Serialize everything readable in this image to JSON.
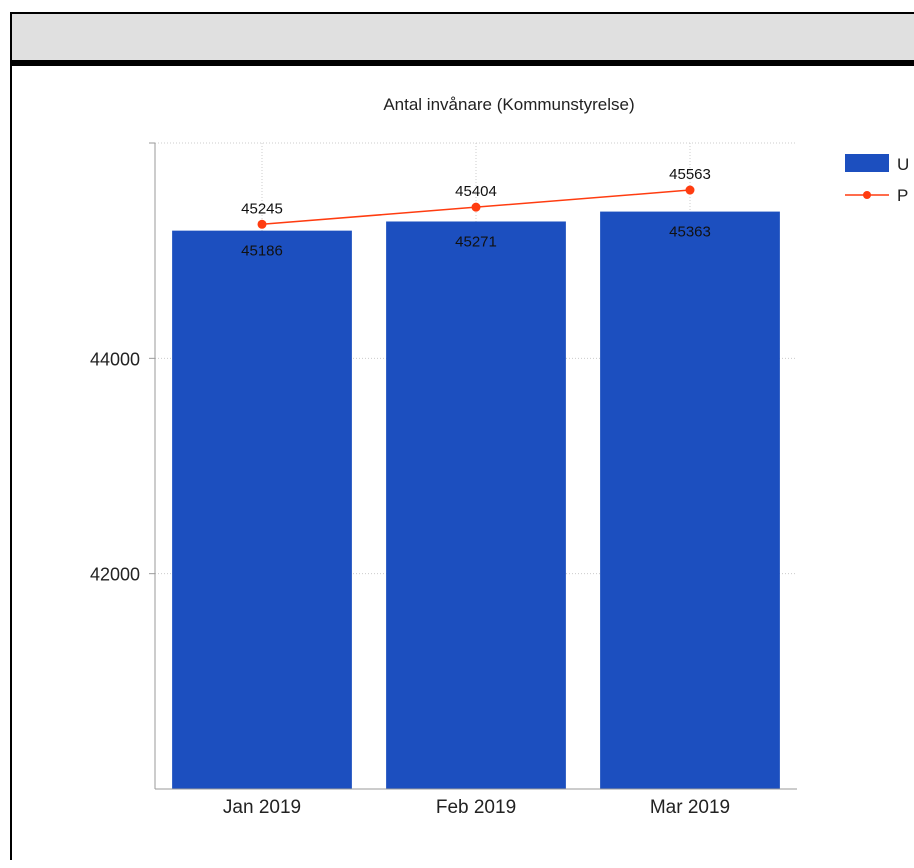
{
  "panel": {
    "header_text": ""
  },
  "chart_data": {
    "type": "bar",
    "title": "Antal invånare (Kommunstyrelse)",
    "categories": [
      "Jan 2019",
      "Feb 2019",
      "Mar 2019"
    ],
    "series": [
      {
        "kind": "bar",
        "legend_label": "U",
        "color": "#1c4fbf",
        "values": [
          45186,
          45271,
          45363
        ]
      },
      {
        "kind": "line",
        "legend_label": "P",
        "color": "#ff3c10",
        "values": [
          45245,
          45404,
          45563
        ]
      }
    ],
    "yticks": [
      42000,
      44000
    ],
    "ylim": [
      40000,
      46000
    ],
    "xlabel": "",
    "ylabel": "",
    "grid": true,
    "legend": "right"
  }
}
